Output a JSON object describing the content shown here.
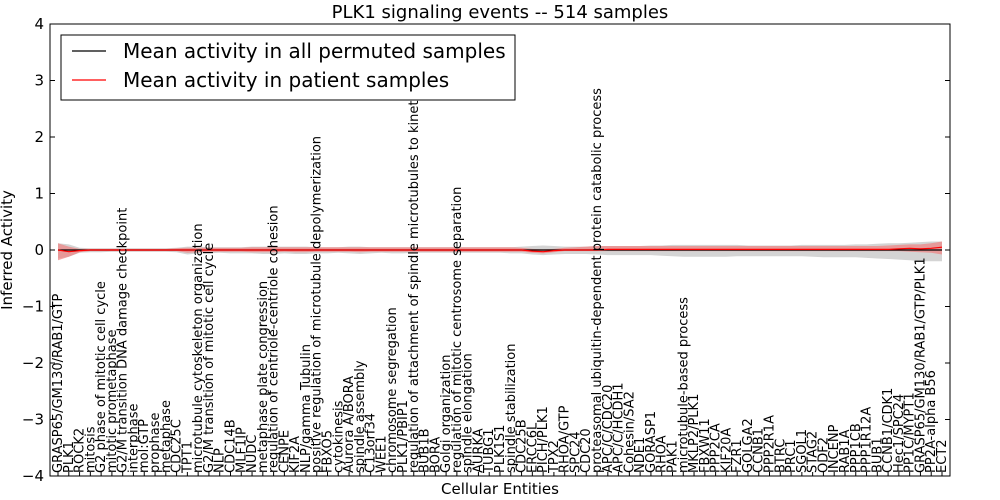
{
  "chart_data": {
    "type": "line",
    "title": "PLK1 signaling events -- 514 samples",
    "xlabel": "Cellular Entities",
    "ylabel": "Inferred Activity",
    "ylim": [
      -4,
      4
    ],
    "yticks": [
      -4,
      -3,
      -2,
      -1,
      0,
      1,
      2,
      3,
      4
    ],
    "legend_position": "top-left",
    "colors": {
      "permuted": "#000000",
      "patient": "#ff0000",
      "patient_band": "#f08080",
      "permuted_band": "#b0b0b0"
    },
    "categories": [
      "GRASP65/GM130/RAB1/GTP",
      "PLK1",
      "ROCK2",
      "mitosis",
      "G2 phase of mitotic cell cycle",
      "mitotic prometaphase",
      "G2/M transition DNA damage checkpoint",
      "interphase",
      "mol:GTP",
      "prophase",
      "metaphase",
      "CDC25C",
      "TPT1",
      "microtubule cytoskeleton organization",
      "G2/M transition of mitotic cell cycle",
      "NLP",
      "CDC14B",
      "MLF1IP",
      "NUDC",
      "metaphase plate congression",
      "regulation of centriole-centriole cohesion",
      "CENPE",
      "KIF2A",
      "NLP/gamma Tubulin",
      "positive regulation of microtubule depolymerization",
      "FBXO5",
      "cytokinesis",
      "Aurora A/BORA",
      "spindle assembly",
      "C13orf34",
      "WEE1",
      "chromosome segregation",
      "PLK1/PBIP1",
      "regulation of attachment of spindle microtubules to kinetochore",
      "BUB1B",
      "BORA",
      "Golgi organization",
      "regulation of mitotic centrosome separation",
      "spindle elongation",
      "AURKA",
      "TUBG1",
      "PLK1S1",
      "spindle stabilization",
      "CDC25B",
      "ERCC6L",
      "PICH/PLK1",
      "TPX2",
      "RHOA/GTP",
      "SPC24",
      "CDC20",
      "proteasomal ubiquitin-dependent protein catabolic process",
      "APC/C/CDC20",
      "APC/C/HCDH1",
      "Cohesin/SA2",
      "NDE1",
      "GORASP1",
      "RHOA",
      "PAK1",
      "microtubule-based process",
      "MKLP2/PLK1",
      "FBXW11",
      "PPP2CA",
      "KIF20A",
      "FZR1",
      "GOLGA2",
      "CCNB1",
      "PPP2R1A",
      "BTRC",
      "PRC1",
      "SGOL1",
      "STAG2",
      "ODF2",
      "INCENP",
      "RAB1A",
      "PPP1CB",
      "PPP1R12A",
      "BUB1",
      "CCNB1/CDK1",
      "Hec1/SPC24",
      "PP1C/MYPT1",
      "GRASP65/GM130/RAB1/GTP/PLK1",
      "PP2A-alpha B56",
      "ECT2"
    ],
    "series": [
      {
        "name": "Mean activity in all permuted samples",
        "values": [
          0,
          0,
          0,
          0,
          0,
          0,
          0,
          0,
          0,
          0,
          0,
          0,
          0,
          0,
          0,
          0,
          0,
          0,
          0,
          0,
          0,
          0,
          0,
          0,
          0,
          0,
          0,
          0,
          0,
          0,
          0,
          0,
          0,
          0,
          0,
          0,
          0,
          0,
          0,
          0,
          0,
          0,
          0,
          0,
          0,
          0,
          0,
          0,
          0,
          0,
          0,
          0,
          0,
          0,
          0,
          0,
          0,
          0,
          0,
          0,
          0,
          0,
          0,
          0,
          0,
          0,
          0,
          0,
          0,
          0,
          0,
          0,
          0,
          0,
          0,
          0,
          0,
          0,
          0,
          0,
          0,
          0,
          0
        ],
        "lower": [
          -0.15,
          -0.12,
          -0.05,
          -0.04,
          -0.04,
          -0.03,
          -0.03,
          -0.03,
          -0.03,
          -0.03,
          -0.03,
          -0.04,
          -0.08,
          -0.06,
          -0.06,
          -0.05,
          -0.06,
          -0.06,
          -0.06,
          -0.07,
          -0.07,
          -0.06,
          -0.07,
          -0.07,
          -0.06,
          -0.06,
          -0.05,
          -0.06,
          -0.07,
          -0.06,
          -0.05,
          -0.06,
          -0.06,
          -0.05,
          -0.05,
          -0.05,
          -0.05,
          -0.05,
          -0.05,
          -0.05,
          -0.05,
          -0.05,
          -0.06,
          -0.06,
          -0.08,
          -0.09,
          -0.08,
          -0.07,
          -0.07,
          -0.07,
          -0.08,
          -0.09,
          -0.09,
          -0.09,
          -0.09,
          -0.09,
          -0.1,
          -0.11,
          -0.12,
          -0.12,
          -0.12,
          -0.12,
          -0.12,
          -0.11,
          -0.11,
          -0.11,
          -0.11,
          -0.11,
          -0.11,
          -0.11,
          -0.12,
          -0.13,
          -0.13,
          -0.13,
          -0.13,
          -0.14,
          -0.15,
          -0.16,
          -0.17,
          -0.18,
          -0.2,
          -0.2,
          -0.2
        ],
        "upper": [
          0.12,
          0.1,
          0.04,
          0.03,
          0.03,
          0.03,
          0.03,
          0.03,
          0.03,
          0.03,
          0.03,
          0.04,
          0.06,
          0.06,
          0.05,
          0.05,
          0.05,
          0.05,
          0.06,
          0.06,
          0.06,
          0.06,
          0.06,
          0.06,
          0.05,
          0.05,
          0.05,
          0.06,
          0.06,
          0.05,
          0.05,
          0.05,
          0.05,
          0.05,
          0.05,
          0.05,
          0.05,
          0.05,
          0.05,
          0.05,
          0.05,
          0.05,
          0.05,
          0.06,
          0.07,
          0.08,
          0.07,
          0.06,
          0.06,
          0.06,
          0.07,
          0.07,
          0.07,
          0.07,
          0.07,
          0.08,
          0.08,
          0.09,
          0.09,
          0.09,
          0.09,
          0.09,
          0.09,
          0.09,
          0.08,
          0.08,
          0.08,
          0.08,
          0.08,
          0.09,
          0.09,
          0.09,
          0.09,
          0.09,
          0.1,
          0.1,
          0.11,
          0.12,
          0.12,
          0.13,
          0.14,
          0.15,
          0.15
        ]
      },
      {
        "name": "Mean activity in patient samples",
        "values": [
          0.0,
          -0.03,
          -0.01,
          0.0,
          0.0,
          0.0,
          0.0,
          0.0,
          0.0,
          0.0,
          0.0,
          0.0,
          0.0,
          0.0,
          0.0,
          0.0,
          0.0,
          0.0,
          0.0,
          0.0,
          0.0,
          0.0,
          0.0,
          0.0,
          0.0,
          0.0,
          0.0,
          0.0,
          0.0,
          0.0,
          0.0,
          0.0,
          0.0,
          0.0,
          0.0,
          0.0,
          0.0,
          0.0,
          0.0,
          0.0,
          0.0,
          0.0,
          0.0,
          0.0,
          -0.02,
          -0.03,
          -0.01,
          0.0,
          0.0,
          0.0,
          0.0,
          0.01,
          0.01,
          0.01,
          0.01,
          0.01,
          0.01,
          0.01,
          0.01,
          0.01,
          0.01,
          0.01,
          0.01,
          0.01,
          0.01,
          0.01,
          0.01,
          0.01,
          0.01,
          0.01,
          0.01,
          0.01,
          0.01,
          0.01,
          0.01,
          0.01,
          0.01,
          0.01,
          0.02,
          0.03,
          0.02,
          0.03,
          0.05
        ],
        "lower": [
          -0.18,
          -0.12,
          -0.04,
          -0.02,
          -0.02,
          -0.02,
          -0.02,
          -0.02,
          -0.02,
          -0.02,
          -0.02,
          -0.02,
          -0.05,
          -0.04,
          -0.03,
          -0.03,
          -0.03,
          -0.03,
          -0.04,
          -0.04,
          -0.04,
          -0.03,
          -0.04,
          -0.04,
          -0.03,
          -0.03,
          -0.03,
          -0.03,
          -0.04,
          -0.03,
          -0.03,
          -0.03,
          -0.03,
          -0.03,
          -0.03,
          -0.03,
          -0.03,
          -0.03,
          -0.03,
          -0.03,
          -0.03,
          -0.03,
          -0.03,
          -0.03,
          -0.05,
          -0.06,
          -0.04,
          -0.02,
          -0.02,
          -0.02,
          -0.02,
          -0.02,
          -0.02,
          -0.02,
          -0.02,
          -0.02,
          -0.02,
          -0.02,
          -0.02,
          -0.02,
          -0.02,
          -0.02,
          -0.02,
          -0.02,
          -0.02,
          -0.02,
          -0.02,
          -0.02,
          -0.02,
          -0.02,
          -0.02,
          -0.02,
          -0.02,
          -0.02,
          -0.02,
          -0.02,
          -0.02,
          -0.02,
          -0.02,
          -0.03,
          -0.04,
          -0.05,
          -0.08
        ],
        "upper": [
          0.12,
          0.06,
          0.02,
          0.02,
          0.02,
          0.02,
          0.02,
          0.02,
          0.02,
          0.02,
          0.02,
          0.03,
          0.04,
          0.04,
          0.04,
          0.04,
          0.04,
          0.04,
          0.05,
          0.05,
          0.05,
          0.05,
          0.05,
          0.05,
          0.05,
          0.05,
          0.05,
          0.05,
          0.05,
          0.05,
          0.05,
          0.05,
          0.05,
          0.05,
          0.05,
          0.05,
          0.05,
          0.05,
          0.05,
          0.05,
          0.05,
          0.05,
          0.05,
          0.04,
          0.02,
          0.01,
          0.02,
          0.04,
          0.05,
          0.06,
          0.07,
          0.07,
          0.07,
          0.07,
          0.07,
          0.07,
          0.07,
          0.07,
          0.07,
          0.07,
          0.07,
          0.07,
          0.07,
          0.07,
          0.07,
          0.07,
          0.07,
          0.07,
          0.07,
          0.07,
          0.07,
          0.07,
          0.07,
          0.07,
          0.07,
          0.07,
          0.07,
          0.08,
          0.09,
          0.1,
          0.1,
          0.12,
          0.15
        ]
      }
    ]
  }
}
